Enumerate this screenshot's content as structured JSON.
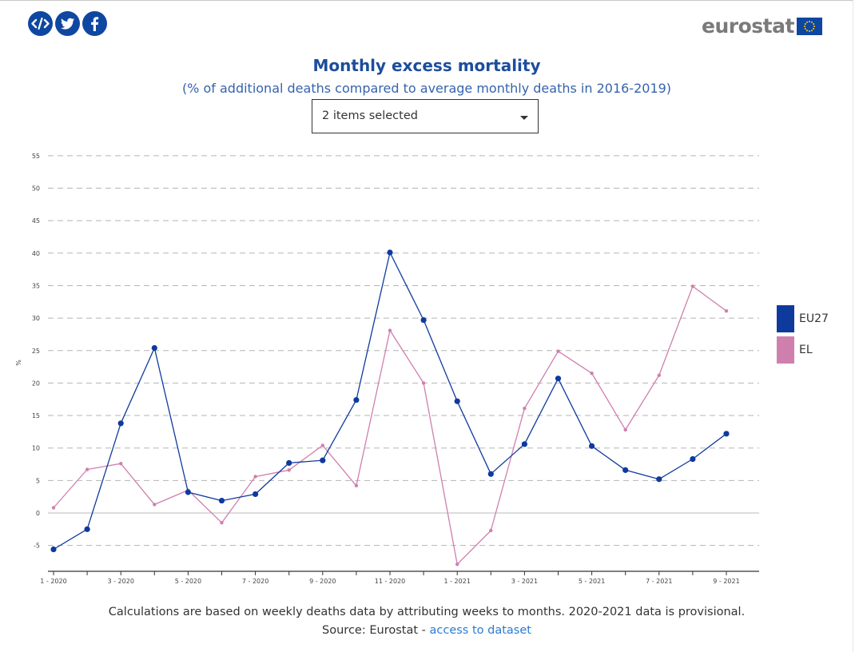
{
  "header": {
    "share_icons": [
      "embed-icon",
      "twitter-icon",
      "facebook-icon"
    ],
    "logo_text": "eurostat",
    "share_color": "#0e47a1"
  },
  "title": "Monthly excess mortality",
  "subtitle": "(% of additional deaths compared to average monthly deaths in 2016-2019)",
  "selector": {
    "value": "2 items selected"
  },
  "legend": [
    {
      "name": "EU27",
      "color": "#0e3a9e"
    },
    {
      "name": "EL",
      "color": "#cf7fae"
    }
  ],
  "footnote": {
    "line1": "Calculations are based on weekly deaths data by attributing weeks to months. 2020-2021 data is provisional.",
    "source_prefix": "Source: Eurostat - ",
    "link_text": "access to dataset"
  },
  "chart_data": {
    "type": "line",
    "title": "Monthly excess mortality",
    "subtitle": "(% of additional deaths compared to average monthly deaths in 2016-2019)",
    "ylabel": "%",
    "xlabel": "",
    "ylim": [
      -8,
      55
    ],
    "yticks": [
      -5,
      0,
      5,
      10,
      15,
      20,
      25,
      30,
      35,
      40,
      45,
      50,
      55
    ],
    "grid": true,
    "legend_position": "right",
    "categories": [
      "1 - 2020",
      "2 - 2020",
      "3 - 2020",
      "4 - 2020",
      "5 - 2020",
      "6 - 2020",
      "7 - 2020",
      "8 - 2020",
      "9 - 2020",
      "10 - 2020",
      "11 - 2020",
      "12 - 2020",
      "1 - 2021",
      "2 - 2021",
      "3 - 2021",
      "4 - 2021",
      "5 - 2021",
      "6 - 2021",
      "7 - 2021",
      "8 - 2021",
      "9 - 2021"
    ],
    "xtick_labels": [
      "1 - 2020",
      "",
      "3 - 2020",
      "",
      "5 - 2020",
      "",
      "7 - 2020",
      "",
      "9 - 2020",
      "",
      "11 - 2020",
      "",
      "1 - 2021",
      "",
      "3 - 2021",
      "",
      "5 - 2021",
      "",
      "7 - 2021",
      "",
      "9 - 2021"
    ],
    "series": [
      {
        "name": "EU27",
        "values": [
          -5.6,
          -2.5,
          13.8,
          25.4,
          3.2,
          1.9,
          2.9,
          7.7,
          8.1,
          17.4,
          40.1,
          29.7,
          17.2,
          6.0,
          10.6,
          20.7,
          10.3,
          6.6,
          5.2,
          8.3,
          12.2
        ]
      },
      {
        "name": "EL",
        "values": [
          0.8,
          6.7,
          7.6,
          1.3,
          3.5,
          -1.5,
          5.6,
          6.6,
          10.4,
          4.2,
          28.1,
          20.0,
          -7.9,
          -2.7,
          16.1,
          24.9,
          21.5,
          12.8,
          21.2,
          34.9,
          31.1
        ]
      }
    ]
  }
}
